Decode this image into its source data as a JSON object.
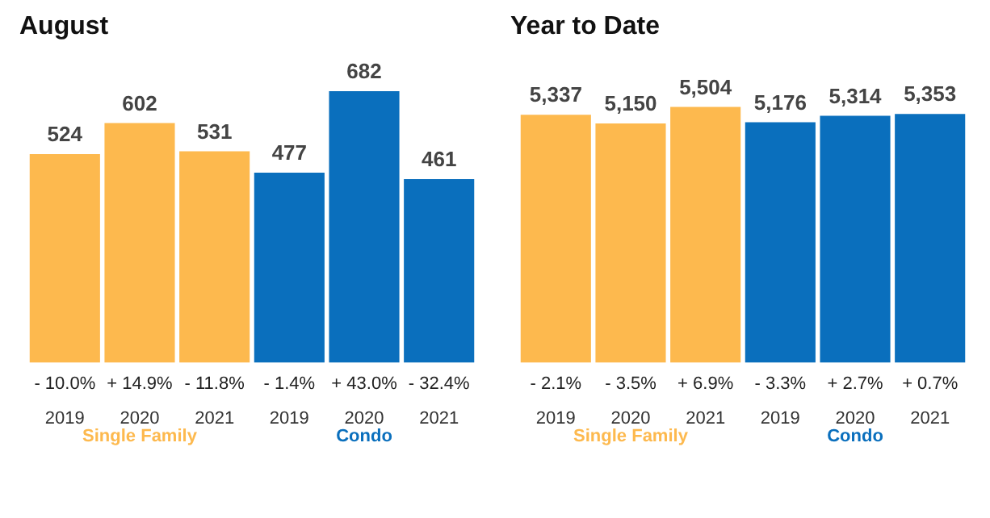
{
  "chart_data": [
    {
      "type": "bar",
      "title": "August",
      "categories": [
        "2019",
        "2020",
        "2021",
        "2019",
        "2020",
        "2021"
      ],
      "data_labels": true,
      "series": [
        {
          "name": "Single Family",
          "color": "#fdb94e",
          "values": [
            524,
            602,
            531,
            null,
            null,
            null
          ]
        },
        {
          "name": "Condo",
          "color": "#0a6fbd",
          "values": [
            null,
            null,
            null,
            477,
            682,
            461
          ]
        }
      ],
      "annotations": [
        "- 10.0%",
        "+ 14.9%",
        "- 11.8%",
        "- 1.4%",
        "+ 43.0%",
        "- 32.4%"
      ]
    },
    {
      "type": "bar",
      "title": "Year to Date",
      "categories": [
        "2019",
        "2020",
        "2021",
        "2019",
        "2020",
        "2021"
      ],
      "series": [
        {
          "name": "Single Family",
          "color": "#fdb94e",
          "values": [
            5337,
            5150,
            5504,
            null,
            null,
            null
          ],
          "value_labels": [
            "5,337",
            "5,150",
            "5,504",
            null,
            null,
            null
          ]
        },
        {
          "name": "Condo",
          "color": "#0a6fbd",
          "values": [
            null,
            null,
            null,
            5176,
            5314,
            5353
          ],
          "value_labels": [
            null,
            null,
            null,
            "5,176",
            "5,314",
            "5,353"
          ]
        }
      ],
      "annotations": [
        "- 2.1%",
        "- 3.5%",
        "+ 6.9%",
        "- 3.3%",
        "+ 2.7%",
        "+ 0.7%"
      ]
    }
  ]
}
